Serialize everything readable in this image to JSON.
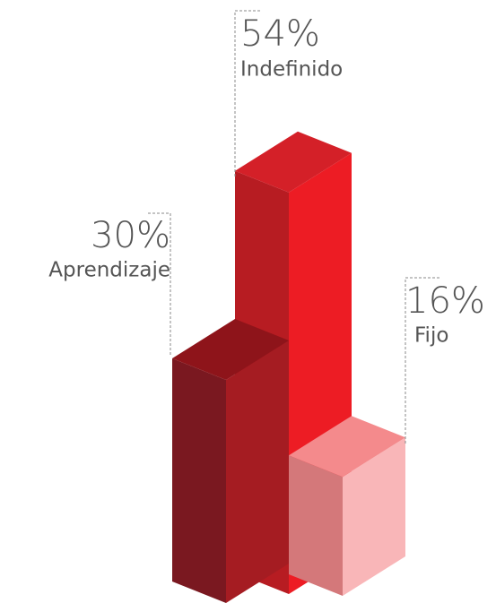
{
  "chart_data": {
    "type": "bar3d",
    "categories": [
      "Aprendizaje",
      "Indefinido",
      "Fijo"
    ],
    "values": [
      30,
      54,
      16
    ],
    "value_labels": [
      "30%",
      "54%",
      "16%"
    ],
    "colors": [
      {
        "left": "#7a1820",
        "right": "#a51c22",
        "top": "#8e141a"
      },
      {
        "left": "#b71c22",
        "right": "#ed1c24",
        "top": "#d42028"
      },
      {
        "left": "#d4787a",
        "right": "#f9b6b8",
        "top": "#f48a8c"
      }
    ]
  }
}
